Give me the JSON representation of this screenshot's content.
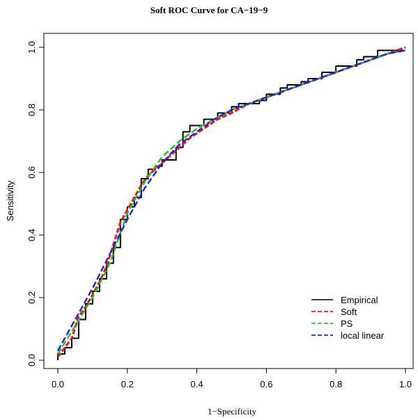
{
  "chart_data": {
    "type": "line",
    "title": "Soft ROC Curve for CA−19−9",
    "xlabel": "1−Specificity",
    "ylabel": "Sensitivity",
    "xlim": [
      0,
      1
    ],
    "ylim": [
      0,
      1
    ],
    "x_ticks": [
      "0.0",
      "0.2",
      "0.4",
      "0.6",
      "0.8",
      "1.0"
    ],
    "y_ticks": [
      "0.0",
      "0.2",
      "0.4",
      "0.6",
      "0.8",
      "1.0"
    ],
    "grid": false,
    "legend_position": "bottom-right",
    "series": [
      {
        "name": "Empirical",
        "color": "#000000",
        "style": "step",
        "x": [
          0,
          0,
          0.02,
          0.02,
          0.04,
          0.04,
          0.06,
          0.06,
          0.08,
          0.08,
          0.1,
          0.1,
          0.12,
          0.12,
          0.14,
          0.14,
          0.16,
          0.16,
          0.18,
          0.18,
          0.2,
          0.2,
          0.22,
          0.22,
          0.24,
          0.24,
          0.26,
          0.26,
          0.28,
          0.28,
          0.3,
          0.3,
          0.34,
          0.34,
          0.36,
          0.36,
          0.38,
          0.38,
          0.42,
          0.42,
          0.46,
          0.46,
          0.5,
          0.5,
          0.52,
          0.52,
          0.58,
          0.58,
          0.6,
          0.6,
          0.64,
          0.64,
          0.66,
          0.66,
          0.7,
          0.7,
          0.72,
          0.72,
          0.76,
          0.76,
          0.8,
          0.8,
          0.86,
          0.86,
          0.88,
          0.88,
          0.92,
          0.92,
          1.0
        ],
        "y": [
          0,
          0.02,
          0.02,
          0.04,
          0.04,
          0.07,
          0.07,
          0.13,
          0.13,
          0.18,
          0.18,
          0.22,
          0.22,
          0.26,
          0.26,
          0.31,
          0.31,
          0.36,
          0.36,
          0.45,
          0.45,
          0.49,
          0.49,
          0.52,
          0.52,
          0.58,
          0.58,
          0.61,
          0.61,
          0.62,
          0.62,
          0.64,
          0.64,
          0.68,
          0.68,
          0.73,
          0.73,
          0.75,
          0.75,
          0.77,
          0.77,
          0.79,
          0.79,
          0.81,
          0.81,
          0.82,
          0.82,
          0.83,
          0.83,
          0.85,
          0.85,
          0.87,
          0.87,
          0.88,
          0.88,
          0.89,
          0.89,
          0.9,
          0.9,
          0.92,
          0.92,
          0.94,
          0.94,
          0.96,
          0.96,
          0.97,
          0.97,
          0.99,
          0.99
        ]
      },
      {
        "name": "Soft",
        "color": "#e8141e",
        "style": "dashed",
        "x": [
          0,
          0.02,
          0.04,
          0.06,
          0.08,
          0.1,
          0.12,
          0.14,
          0.16,
          0.18,
          0.2,
          0.22,
          0.24,
          0.26,
          0.28,
          0.3,
          0.34,
          0.38,
          0.42,
          0.46,
          0.5,
          0.55,
          0.6,
          0.65,
          0.7,
          0.75,
          0.8,
          0.85,
          0.9,
          0.95,
          1.0
        ],
        "y": [
          0.01,
          0.04,
          0.07,
          0.14,
          0.17,
          0.21,
          0.25,
          0.3,
          0.37,
          0.44,
          0.48,
          0.52,
          0.56,
          0.59,
          0.61,
          0.63,
          0.67,
          0.71,
          0.74,
          0.77,
          0.79,
          0.82,
          0.84,
          0.86,
          0.88,
          0.9,
          0.92,
          0.94,
          0.96,
          0.98,
          1.0
        ]
      },
      {
        "name": "PS",
        "color": "#22c322",
        "style": "dashed",
        "x": [
          0,
          0.05,
          0.1,
          0.15,
          0.2,
          0.25,
          0.3,
          0.35,
          0.4,
          0.45,
          0.5,
          0.55,
          0.6,
          0.65,
          0.7,
          0.75,
          0.8,
          0.85,
          0.9,
          0.95,
          1.0
        ],
        "y": [
          0.02,
          0.11,
          0.2,
          0.31,
          0.47,
          0.57,
          0.65,
          0.7,
          0.74,
          0.77,
          0.8,
          0.82,
          0.84,
          0.86,
          0.88,
          0.9,
          0.92,
          0.94,
          0.96,
          0.98,
          0.99
        ]
      },
      {
        "name": "local linear",
        "color": "#1f28e0",
        "style": "dashed",
        "x": [
          0,
          0.05,
          0.1,
          0.15,
          0.2,
          0.25,
          0.3,
          0.35,
          0.4,
          0.45,
          0.5,
          0.55,
          0.6,
          0.65,
          0.7,
          0.75,
          0.8,
          0.85,
          0.9,
          0.95,
          1.0
        ],
        "y": [
          0.03,
          0.13,
          0.23,
          0.34,
          0.45,
          0.55,
          0.63,
          0.69,
          0.73,
          0.77,
          0.8,
          0.82,
          0.84,
          0.86,
          0.88,
          0.9,
          0.92,
          0.94,
          0.96,
          0.98,
          0.99
        ]
      }
    ]
  }
}
